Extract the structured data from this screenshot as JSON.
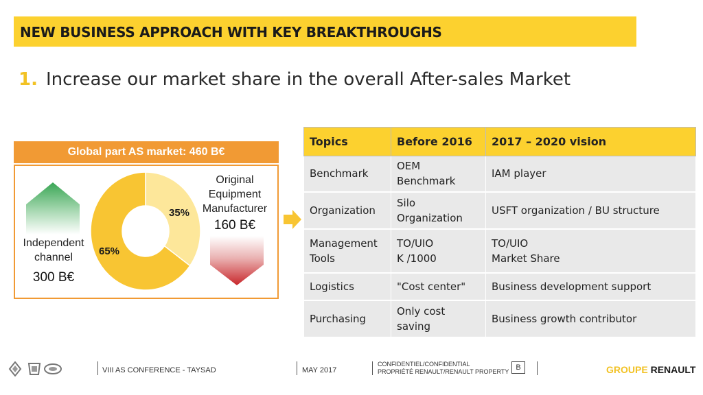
{
  "header": {
    "title": "NEW BUSINESS APPROACH WITH KEY BREAKTHROUGHS",
    "headline_number": "1.",
    "headline": "Increase our market share in the overall After-sales Market"
  },
  "market": {
    "header": "Global part AS market: 460 B€",
    "oem_label_1": "Original",
    "oem_label_2": "Equipment",
    "oem_label_3": "Manufacturer",
    "oem_value": "160 B€",
    "oem_pct": "35%",
    "indep_label_1": "Independent",
    "indep_label_2": "channel",
    "indep_value": "300 B€",
    "indep_pct": "65%",
    "colors": {
      "oem": "#fde79a",
      "indep": "#f8c533",
      "border": "#f19a34"
    }
  },
  "chart_data": {
    "type": "pie",
    "donut": true,
    "title": "Global part AS market: 460 B€",
    "slices": [
      {
        "label": "Original Equipment Manufacturer",
        "value": 35,
        "amount": "160 B€"
      },
      {
        "label": "Independent channel",
        "value": 65,
        "amount": "300 B€"
      }
    ]
  },
  "table": {
    "headers": [
      "Topics",
      "Before 2016",
      "2017 – 2020 vision"
    ],
    "rows": [
      {
        "topic": "Benchmark",
        "before_1": "OEM",
        "before_2": "Benchmark",
        "vision_1": "IAM player",
        "vision_2": ""
      },
      {
        "topic": "Organization",
        "before_1": "Silo",
        "before_2": "Organization",
        "vision_1": "USFT organization / BU structure",
        "vision_2": ""
      },
      {
        "topic_1": "Management",
        "topic_2": "Tools",
        "before_1": "TO/UIO",
        "before_2": "K /1000",
        "vision_1": "TO/UIO",
        "vision_2": "Market Share"
      },
      {
        "topic": "Logistics",
        "before_1": "\"Cost center\"",
        "before_2": "",
        "vision_1": "Business development support",
        "vision_2": ""
      },
      {
        "topic": "Purchasing",
        "before_1": "Only cost",
        "before_2": "saving",
        "vision_1": "Business growth contributor",
        "vision_2": ""
      }
    ]
  },
  "footer": {
    "conference": "VIII AS CONFERENCE - TAYSAD",
    "date": "MAY 2017",
    "conf_1": "CONFIDENTIEL/CONFIDENTIAL",
    "conf_2": "PROPRIÉTÉ RENAULT/RENAULT PROPERTY",
    "class_letter": "B",
    "brand_1": "GROUPE",
    "brand_2": "RENAULT"
  }
}
